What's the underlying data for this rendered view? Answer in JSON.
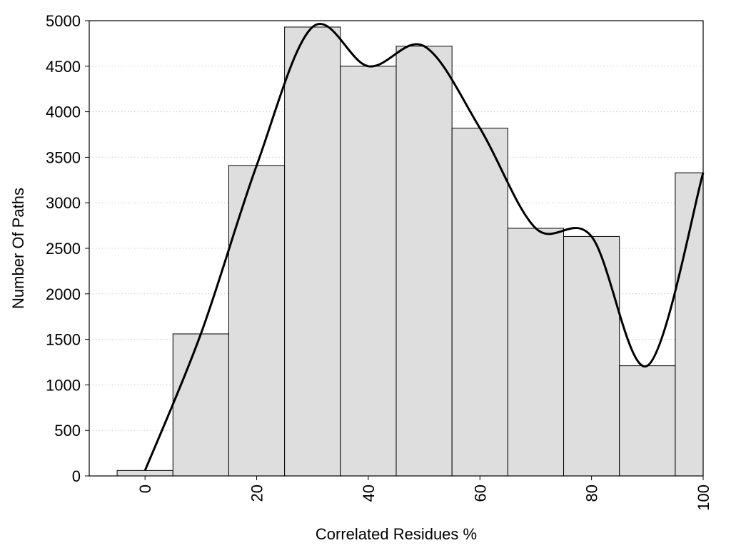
{
  "chart_data": {
    "type": "bar",
    "xlabel": "Correlated Residues %",
    "ylabel": "Number Of Paths",
    "xlim": [
      -10,
      100
    ],
    "ylim": [
      0,
      5000
    ],
    "x_ticks": [
      0,
      20,
      40,
      60,
      80,
      100
    ],
    "y_ticks": [
      0,
      500,
      1000,
      1500,
      2000,
      2500,
      3000,
      3500,
      4000,
      4500,
      5000
    ],
    "grid": "horizontal dotted",
    "bars": {
      "x": [
        0,
        10,
        20,
        30,
        40,
        50,
        60,
        70,
        80,
        90,
        100
      ],
      "bin_width": 10,
      "values": [
        60,
        1560,
        3410,
        4930,
        4500,
        4720,
        3820,
        2720,
        2630,
        1210,
        3330
      ]
    },
    "curve": {
      "type": "line",
      "x": [
        0,
        10,
        20,
        30,
        40,
        50,
        60,
        70,
        80,
        90,
        100
      ],
      "values": [
        60,
        1560,
        3410,
        4930,
        4500,
        4720,
        3820,
        2720,
        2630,
        1210,
        3330
      ]
    },
    "colors": {
      "bar_fill": "#dedede",
      "bar_stroke": "#000000",
      "curve": "#000000",
      "grid": "#c8c8c8"
    }
  }
}
